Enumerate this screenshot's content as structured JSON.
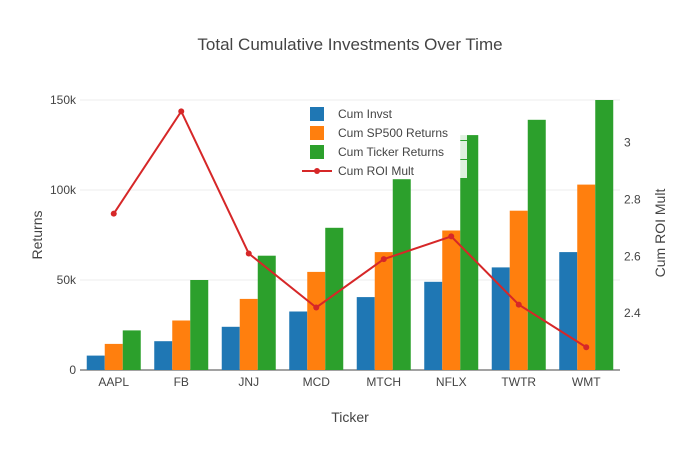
{
  "chart_data": {
    "type": "bar",
    "title": "Total Cumulative Investments Over Time",
    "xlabel": "Ticker",
    "ylabel": "Returns",
    "y2label": "Cum ROI Mult",
    "categories": [
      "AAPL",
      "FB",
      "JNJ",
      "MCD",
      "MTCH",
      "NFLX",
      "TWTR",
      "WMT"
    ],
    "ylim": [
      0,
      150000
    ],
    "y2lim": [
      2.2,
      3.15
    ],
    "y_ticks": [
      0,
      50000,
      100000,
      150000
    ],
    "y_tick_labels": [
      "0",
      "50k",
      "100k",
      "150k"
    ],
    "y2_ticks": [
      2.4,
      2.6,
      2.8,
      3.0
    ],
    "y2_tick_labels": [
      "2.4",
      "2.6",
      "2.8",
      "3"
    ],
    "legend_position": "top-center",
    "grid": true,
    "series": [
      {
        "name": "Cum Invst",
        "kind": "bar",
        "axis": "y",
        "color": "#1f77b4",
        "values": [
          8000,
          16000,
          24000,
          32500,
          40500,
          49000,
          57000,
          65500
        ]
      },
      {
        "name": "Cum SP500 Returns",
        "kind": "bar",
        "axis": "y",
        "color": "#ff7f0e",
        "values": [
          14500,
          27500,
          39500,
          54500,
          65500,
          77500,
          88500,
          103000
        ]
      },
      {
        "name": "Cum Ticker Returns",
        "kind": "bar",
        "axis": "y",
        "color": "#2ca02c",
        "values": [
          22000,
          50000,
          63500,
          79000,
          106000,
          130500,
          139000,
          150000
        ]
      },
      {
        "name": "Cum ROI Mult",
        "kind": "line",
        "axis": "y2",
        "color": "#d62728",
        "values": [
          2.75,
          3.11,
          2.61,
          2.42,
          2.59,
          2.67,
          2.43,
          2.28
        ]
      }
    ]
  }
}
